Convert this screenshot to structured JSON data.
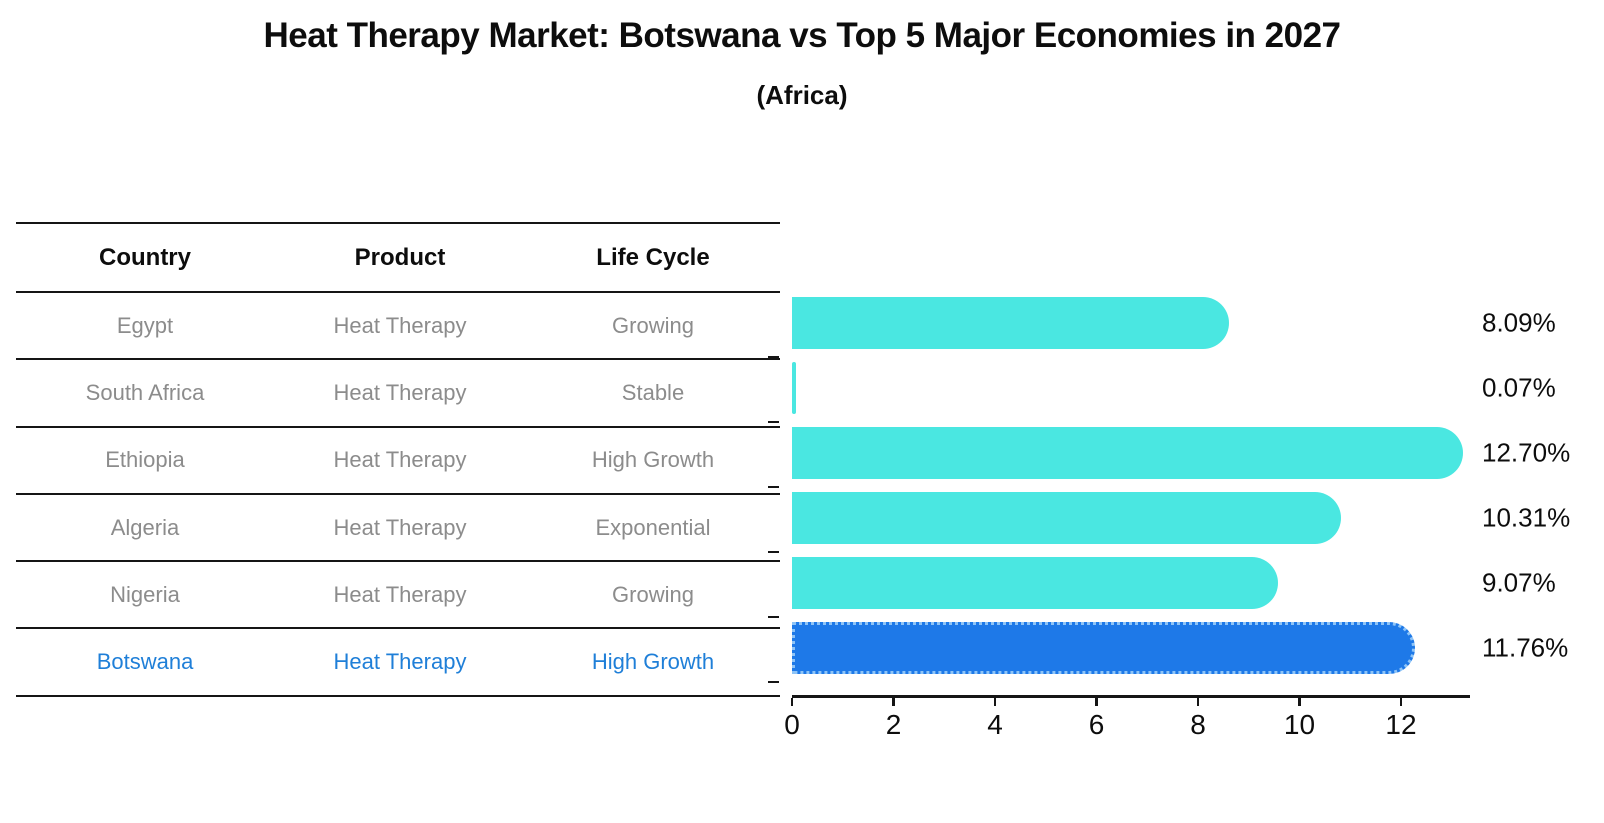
{
  "title": "Heat Therapy Market: Botswana vs Top 5 Major Economies in 2027",
  "subtitle": "(Africa)",
  "colors": {
    "bar_default": "#4ae7e1",
    "bar_highlight": "#1e79e8",
    "highlight_text": "#1f7fd8",
    "table_text": "#8c8c8c",
    "axis": "#151515"
  },
  "table": {
    "headers": [
      "Country",
      "Product",
      "Life Cycle"
    ],
    "rows": [
      {
        "country": "Egypt",
        "product": "Heat Therapy",
        "life_cycle": "Growing",
        "highlighted": false
      },
      {
        "country": "South Africa",
        "product": "Heat Therapy",
        "life_cycle": "Stable",
        "highlighted": false
      },
      {
        "country": "Ethiopia",
        "product": "Heat Therapy",
        "life_cycle": "High Growth",
        "highlighted": false
      },
      {
        "country": "Algeria",
        "product": "Heat Therapy",
        "life_cycle": "Exponential",
        "highlighted": false
      },
      {
        "country": "Nigeria",
        "product": "Heat Therapy",
        "life_cycle": "Growing",
        "highlighted": false
      },
      {
        "country": "Botswana",
        "product": "Heat Therapy",
        "life_cycle": "High Growth",
        "highlighted": true
      }
    ]
  },
  "chart_data": {
    "type": "bar",
    "orientation": "horizontal",
    "title": "Heat Therapy Market: Botswana vs Top 5 Major Economies in 2027",
    "subtitle": "(Africa)",
    "categories": [
      "Egypt",
      "South Africa",
      "Ethiopia",
      "Algeria",
      "Nigeria",
      "Botswana"
    ],
    "values": [
      8.09,
      0.07,
      12.7,
      10.31,
      9.07,
      11.76
    ],
    "value_labels": [
      "8.09%",
      "0.07%",
      "12.70%",
      "10.31%",
      "9.07%",
      "11.76%"
    ],
    "highlight_category": "Botswana",
    "x_ticks": [
      0,
      2,
      4,
      6,
      8,
      10,
      12
    ],
    "xlim": [
      0,
      13.3
    ],
    "grid": false,
    "legend": false
  }
}
